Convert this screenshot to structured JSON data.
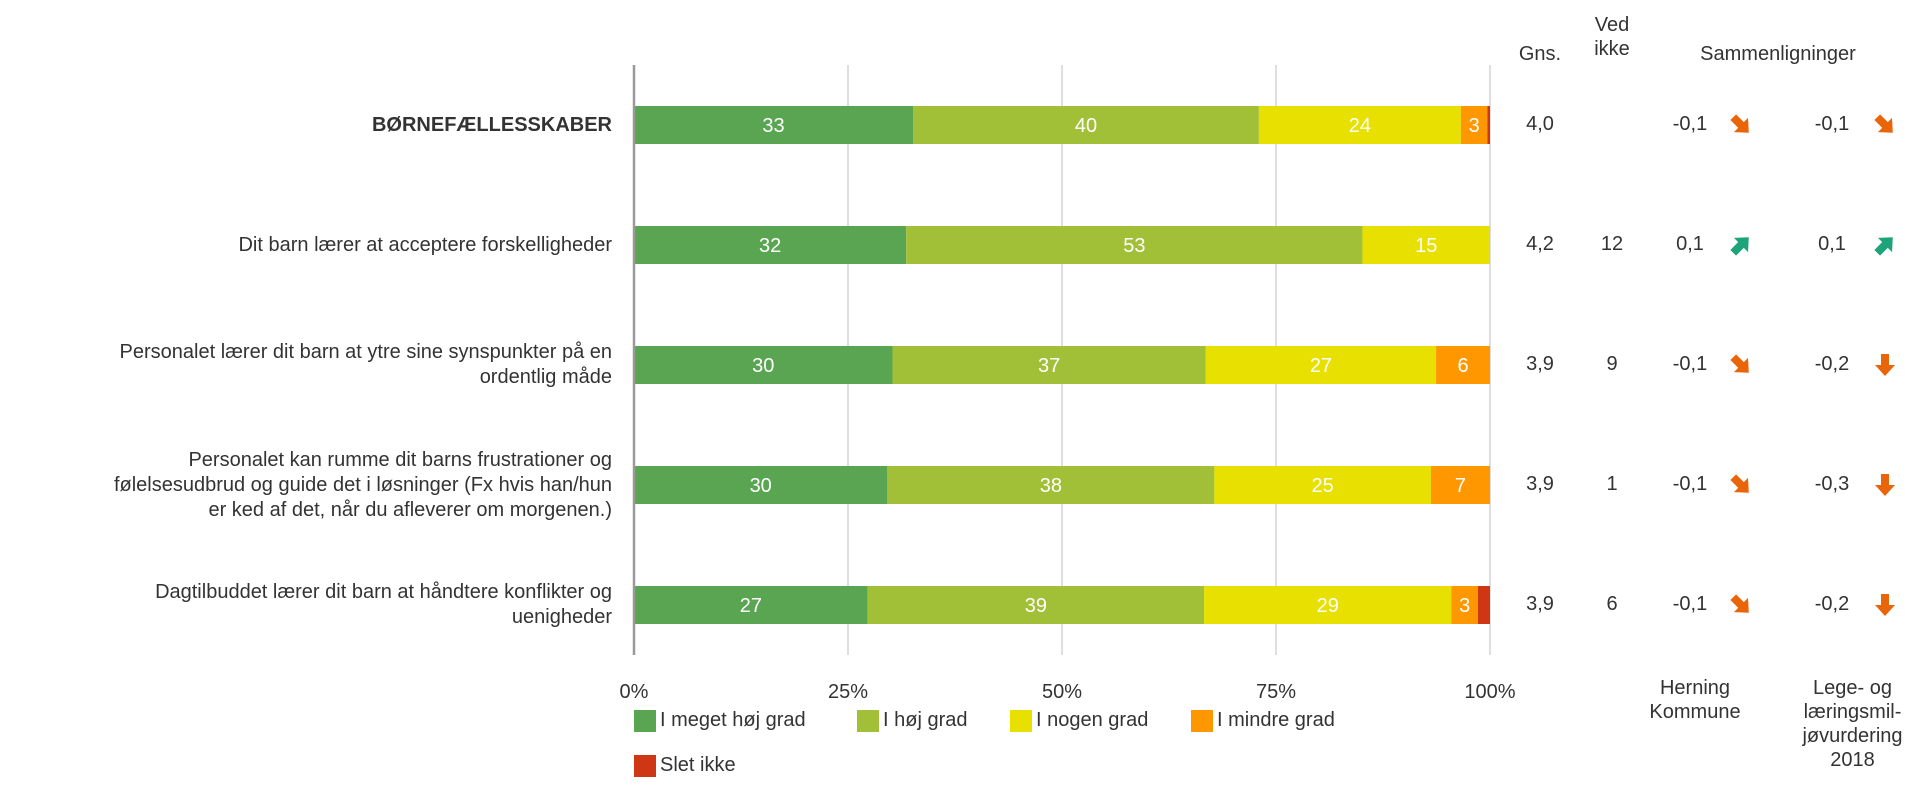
{
  "chart_data": {
    "type": "bar",
    "orientation": "horizontal",
    "stacked": true,
    "x_ticks": [
      "0%",
      "25%",
      "50%",
      "75%",
      "100%"
    ],
    "xlim": [
      0,
      100
    ],
    "grid": true,
    "legend_position": "bottom",
    "colors": [
      "#5aa552",
      "#a1c037",
      "#e8e000",
      "#ff9800",
      "#cf3714"
    ],
    "series_names": [
      "I meget høj grad",
      "I høj grad",
      "I nogen grad",
      "I mindre grad",
      "Slet ikke"
    ],
    "categories": [
      "BØRNEFÆLLESSKABER",
      "Dit barn lærer at acceptere forskelligheder",
      "Personalet lærer dit barn at ytre sine synspunkter på en ordentlig måde",
      "Personalet kan rumme dit barns frustrationer og følelsesudbrud og guide det i løsninger (Fx hvis han/hun er ked af det, når du afleverer om morgenen.)",
      "Dagtilbuddet lærer dit barn at håndtere konflikter og uenigheder"
    ],
    "series": [
      {
        "name": "I meget høj grad",
        "values": [
          32.6,
          31.8,
          30.2,
          29.6,
          27.3
        ]
      },
      {
        "name": "I høj grad",
        "values": [
          40.4,
          53.3,
          36.6,
          38.2,
          39.3
        ]
      },
      {
        "name": "I nogen grad",
        "values": [
          23.6,
          14.9,
          26.9,
          25.3,
          28.9
        ]
      },
      {
        "name": "I mindre grad",
        "values": [
          3.1,
          0,
          6.3,
          6.9,
          3.1
        ]
      },
      {
        "name": "Slet ikke",
        "values": [
          0.3,
          0,
          0,
          0,
          1.4
        ]
      }
    ],
    "data_labels": [
      [
        "33",
        "40",
        "24",
        "3",
        ""
      ],
      [
        "32",
        "53",
        "15",
        "",
        ""
      ],
      [
        "30",
        "37",
        "27",
        "6",
        ""
      ],
      [
        "30",
        "38",
        "25",
        "7",
        ""
      ],
      [
        "27",
        "39",
        "29",
        "3",
        ""
      ]
    ]
  },
  "rows": [
    {
      "label_lines": [
        "BØRNEFÆLLESSKABER"
      ],
      "bold": true,
      "gns": "4,0",
      "ved_ikke": "",
      "comp1_value": "-0,1",
      "comp1_dir": "down-right",
      "comp2_value": "-0,1",
      "comp2_dir": "down-right"
    },
    {
      "label_lines": [
        "Dit barn lærer at acceptere forskelligheder"
      ],
      "bold": false,
      "gns": "4,2",
      "ved_ikke": "12",
      "comp1_value": "0,1",
      "comp1_dir": "up-right",
      "comp2_value": "0,1",
      "comp2_dir": "up-right"
    },
    {
      "label_lines": [
        "Personalet lærer dit barn at ytre sine synspunkter på en",
        "ordentlig måde"
      ],
      "bold": false,
      "gns": "3,9",
      "ved_ikke": "9",
      "comp1_value": "-0,1",
      "comp1_dir": "down-right",
      "comp2_value": "-0,2",
      "comp2_dir": "down"
    },
    {
      "label_lines": [
        "Personalet kan rumme dit barns frustrationer og",
        "følelsesudbrud og guide det i løsninger (Fx hvis han/hun",
        "er ked af det, når du afleverer om morgenen.)"
      ],
      "bold": false,
      "gns": "3,9",
      "ved_ikke": "1",
      "comp1_value": "-0,1",
      "comp1_dir": "down-right",
      "comp2_value": "-0,3",
      "comp2_dir": "down"
    },
    {
      "label_lines": [
        "Dagtilbuddet lærer dit barn at håndtere konflikter og",
        "uenigheder"
      ],
      "bold": false,
      "gns": "3,9",
      "ved_ikke": "6",
      "comp1_value": "-0,1",
      "comp1_dir": "down-right",
      "comp2_value": "-0,2",
      "comp2_dir": "down"
    }
  ],
  "headers": {
    "gns": "Gns.",
    "ved_ikke_lines": [
      "Ved",
      "ikke"
    ],
    "comparisons": "Sammenligninger",
    "comp1_lines": [
      "Herning",
      "Kommune"
    ],
    "comp2_lines": [
      "Lege- og",
      "læringsmil-",
      "jøvurdering",
      "2018"
    ]
  },
  "icons": {
    "up-right": "arrow-up-right-icon",
    "down-right": "arrow-down-right-icon",
    "down": "arrow-down-icon"
  },
  "arrow_colors": {
    "up-right": "#1fa37a",
    "down-right": "#e8650a",
    "down": "#e8650a"
  }
}
